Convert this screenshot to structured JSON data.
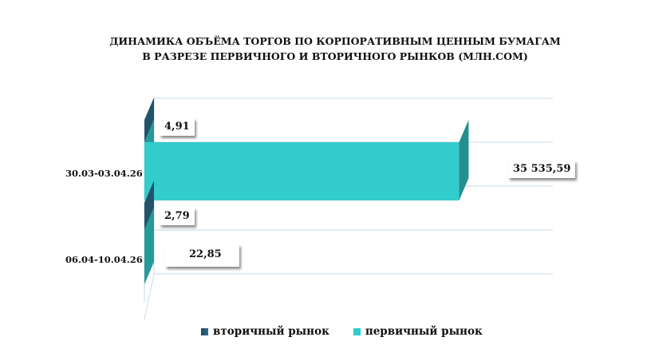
{
  "chart_data": {
    "type": "bar",
    "orientation": "horizontal",
    "title": "ДИНАМИКА ОБЪЁМА ТОРГОВ ПО КОРПОРАТИВНЫМ ЦЕННЫМ БУМАГАМ В РАЗРЕЗЕ ПЕРВИЧНОГО И ВТОРИЧНОГО РЫНКОВ (МЛН.СОМ)",
    "title_lines": [
      "ДИНАМИКА ОБЪЁМА ТОРГОВ ПО КОРПОРАТИВНЫМ ЦЕННЫМ БУМАГАМ",
      "В РАЗРЕЗЕ ПЕРВИЧНОГО И ВТОРИЧНОГО РЫНКОВ  (МЛН.СОМ)"
    ],
    "categories": [
      "30.03-03.04.26",
      "06.04-10.04.26"
    ],
    "series": [
      {
        "name": "вторичный рынок",
        "values": [
          4.91,
          2.79
        ],
        "labels": [
          "4,91",
          "2,79"
        ],
        "color": "#2e6e8e"
      },
      {
        "name": "первичный рынок",
        "values": [
          35535.59,
          22.85
        ],
        "labels": [
          "35 535,59",
          "22,85"
        ],
        "color": "#33cccc"
      }
    ],
    "legend_position": "bottom",
    "grid": true,
    "xlim": [
      0,
      40000
    ],
    "three_d": true
  }
}
